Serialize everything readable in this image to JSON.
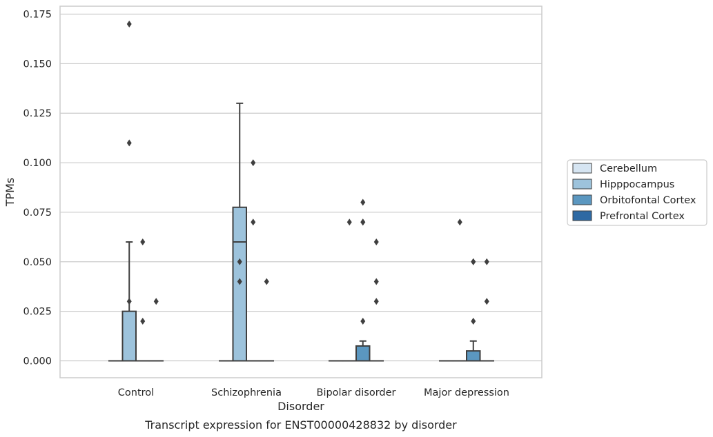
{
  "chart_data": {
    "type": "boxplot",
    "title": "",
    "caption": "Transcript expression for ENST00000428832 by disorder",
    "xlabel": "Disorder",
    "ylabel": "TPMs",
    "ylim": [
      -0.0085,
      0.1788
    ],
    "yticks": [
      0.0,
      0.025,
      0.05,
      0.075,
      0.1,
      0.125,
      0.15,
      0.175
    ],
    "ytick_labels": [
      "0.000",
      "0.025",
      "0.050",
      "0.075",
      "0.100",
      "0.125",
      "0.150",
      "0.175"
    ],
    "categories": [
      "Control",
      "Schizophrenia",
      "Bipolar disorder",
      "Major depression"
    ],
    "grid": "horizontal",
    "legend_position": "right",
    "series": [
      {
        "name": "Cerebellum",
        "color": "#d6e5f2",
        "boxes": [
          {
            "q1": 0,
            "median": 0,
            "q3": 0,
            "whisker_low": 0,
            "whisker_high": 0,
            "outliers": []
          },
          {
            "q1": 0,
            "median": 0,
            "q3": 0,
            "whisker_low": 0,
            "whisker_high": 0,
            "outliers": []
          },
          {
            "q1": 0,
            "median": 0,
            "q3": 0,
            "whisker_low": 0,
            "whisker_high": 0,
            "outliers": []
          },
          {
            "q1": 0,
            "median": 0,
            "q3": 0,
            "whisker_low": 0,
            "whisker_high": 0,
            "outliers": []
          }
        ]
      },
      {
        "name": "Hipppocampus",
        "color": "#9dc3dc",
        "boxes": [
          {
            "q1": 0,
            "median": 0,
            "q3": 0.025,
            "whisker_low": 0,
            "whisker_high": 0.06,
            "outliers": [
              0.17,
              0.11
            ]
          },
          {
            "q1": 0,
            "median": 0.06,
            "q3": 0.0775,
            "whisker_low": 0,
            "whisker_high": 0.13,
            "outliers": []
          },
          {
            "q1": 0,
            "median": 0,
            "q3": 0,
            "whisker_low": 0,
            "whisker_high": 0,
            "outliers": []
          },
          {
            "q1": 0,
            "median": 0,
            "q3": 0,
            "whisker_low": 0,
            "whisker_high": 0,
            "outliers": []
          }
        ]
      },
      {
        "name": "Orbitofontal Cortex",
        "color": "#5b97c0",
        "boxes": [
          {
            "q1": 0,
            "median": 0,
            "q3": 0,
            "whisker_low": 0,
            "whisker_high": 0,
            "outliers": []
          },
          {
            "q1": 0,
            "median": 0,
            "q3": 0,
            "whisker_low": 0,
            "whisker_high": 0,
            "outliers": []
          },
          {
            "q1": 0,
            "median": 0,
            "q3": 0.0075,
            "whisker_low": 0,
            "whisker_high": 0.01,
            "outliers": [
              0.08,
              0.07
            ]
          },
          {
            "q1": 0,
            "median": 0,
            "q3": 0.005,
            "whisker_low": 0,
            "whisker_high": 0.01,
            "outliers": [
              0.05,
              0.02
            ]
          }
        ]
      },
      {
        "name": "Prefrontal Cortex",
        "color": "#2e69a3",
        "boxes": [
          {
            "q1": 0,
            "median": 0,
            "q3": 0,
            "whisker_low": 0,
            "whisker_high": 0,
            "outliers": []
          },
          {
            "q1": 0,
            "median": 0,
            "q3": 0,
            "whisker_low": 0,
            "whisker_high": 0,
            "outliers": []
          },
          {
            "q1": 0,
            "median": 0,
            "q3": 0,
            "whisker_low": 0,
            "whisker_high": 0,
            "outliers": []
          },
          {
            "q1": 0,
            "median": 0,
            "q3": 0,
            "whisker_low": 0,
            "whisker_high": 0,
            "outliers": []
          }
        ]
      }
    ],
    "extra_outliers": [
      {
        "category": 0,
        "offset": -0.5,
        "values": [
          0.03
        ]
      },
      {
        "category": 0,
        "offset": 0.5,
        "values": [
          0.06,
          0.02
        ]
      },
      {
        "category": 0,
        "offset": 1.5,
        "values": [
          0.03
        ]
      },
      {
        "category": 1,
        "offset": -0.5,
        "values": [
          0.05,
          0.04
        ]
      },
      {
        "category": 1,
        "offset": 0.5,
        "values": [
          0.1,
          0.07
        ]
      },
      {
        "category": 1,
        "offset": 1.5,
        "values": [
          0.04
        ]
      },
      {
        "category": 2,
        "offset": -0.5,
        "values": [
          0.07
        ]
      },
      {
        "category": 2,
        "offset": 0.5,
        "values": [
          0.07,
          0.02
        ]
      },
      {
        "category": 2,
        "offset": 1.5,
        "values": [
          0.06,
          0.04,
          0.03
        ]
      },
      {
        "category": 3,
        "offset": -0.5,
        "values": [
          0.07
        ]
      },
      {
        "category": 3,
        "offset": 0.5,
        "values": [
          0.05
        ]
      },
      {
        "category": 3,
        "offset": 1.5,
        "values": [
          0.05,
          0.03
        ]
      }
    ]
  }
}
